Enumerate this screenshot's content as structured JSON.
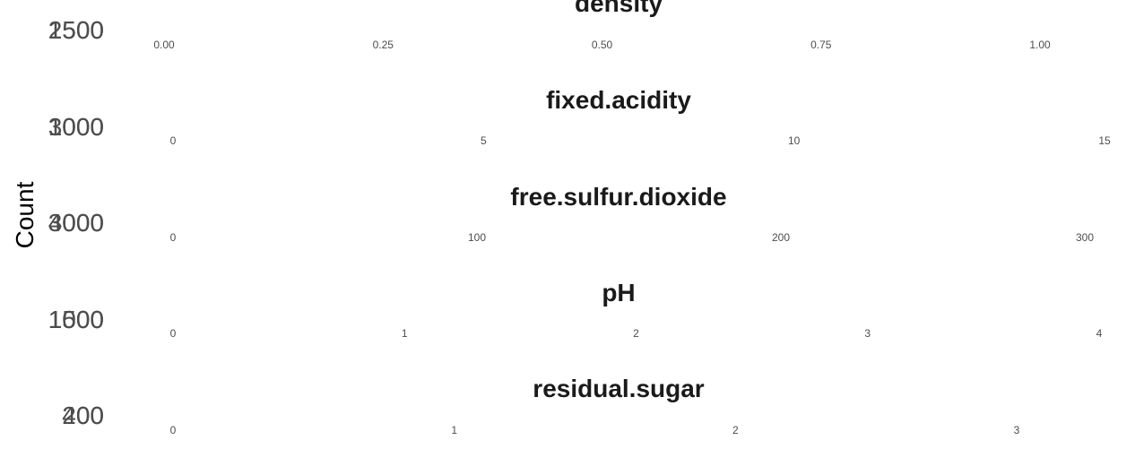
{
  "figure": {
    "y_axis_label": "Count"
  },
  "chart_data": [
    {
      "type": "bar",
      "title": "density",
      "ylabel": "Count",
      "y_tick_labels": [
        "1500",
        "2500"
      ],
      "x_tick_labels": [
        "0.00",
        "0.25",
        "0.50",
        "0.75",
        "1.00"
      ],
      "xlim": [
        0,
        1.0
      ],
      "grid": false
    },
    {
      "type": "bar",
      "title": "fixed.acidity",
      "ylabel": "Count",
      "y_tick_labels": [
        "1000",
        "3000"
      ],
      "x_tick_labels": [
        "0",
        "5",
        "10",
        "15"
      ],
      "xlim": [
        0,
        15
      ],
      "grid": false
    },
    {
      "type": "bar",
      "title": "free.sulfur.dioxide",
      "ylabel": "Count",
      "y_tick_labels": [
        "3000",
        "4000"
      ],
      "x_tick_labels": [
        "0",
        "100",
        "200",
        "300"
      ],
      "xlim": [
        0,
        300
      ],
      "grid": false
    },
    {
      "type": "bar",
      "title": "pH",
      "ylabel": "Count",
      "y_tick_labels": [
        "1000",
        "1500"
      ],
      "x_tick_labels": [
        "0",
        "1",
        "2",
        "3",
        "4"
      ],
      "xlim": [
        0,
        4
      ],
      "grid": false
    },
    {
      "type": "bar",
      "title": "residual.sugar",
      "ylabel": "Count",
      "y_tick_labels": [
        "200",
        "400"
      ],
      "x_tick_labels": [
        "0",
        "1",
        "2",
        "3"
      ],
      "xlim": [
        0,
        3
      ],
      "grid": false
    }
  ]
}
